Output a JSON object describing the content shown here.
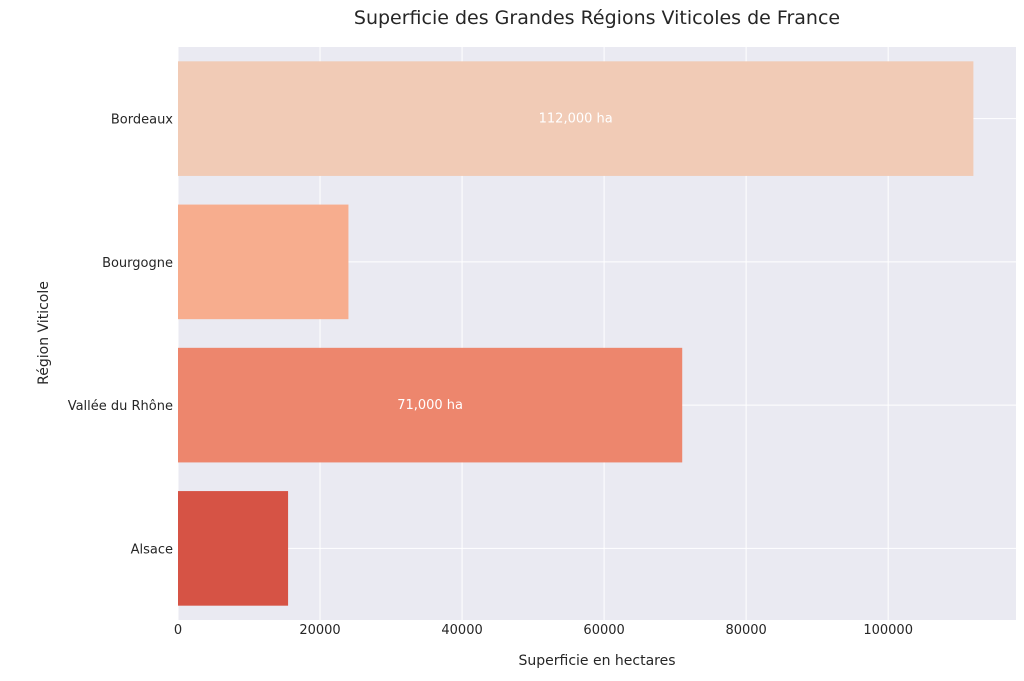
{
  "chart_data": {
    "type": "bar",
    "orientation": "horizontal",
    "title": "Superficie des Grandes Régions Viticoles de France",
    "xlabel": "Superficie en hectares",
    "ylabel": "Région Viticole",
    "categories": [
      "Bordeaux",
      "Bourgogne",
      "Vallée du Rhône",
      "Alsace"
    ],
    "values": [
      112000,
      24000,
      71000,
      15500
    ],
    "data_labels": [
      "112,000 ha",
      "",
      "71,000 ha",
      ""
    ],
    "bar_colors": [
      "#f1cbb6",
      "#f7ad8e",
      "#ed866d",
      "#d65345"
    ],
    "xlim": [
      0,
      118000
    ],
    "xticks": [
      0,
      20000,
      40000,
      60000,
      80000,
      100000
    ],
    "xtick_labels": [
      "0",
      "20000",
      "40000",
      "60000",
      "80000",
      "100000"
    ],
    "grid": true,
    "background_color": "#eaeaf2",
    "grid_color": "#ffffff"
  }
}
